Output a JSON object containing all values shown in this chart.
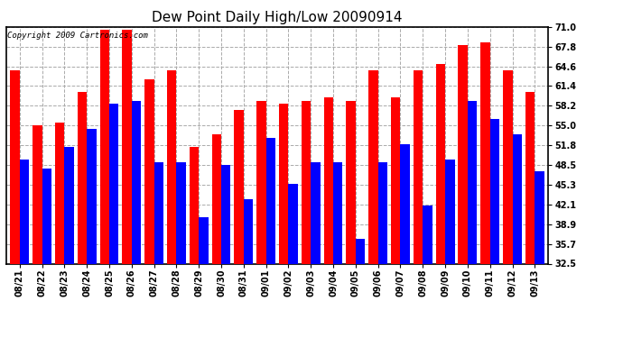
{
  "title": "Dew Point Daily High/Low 20090914",
  "copyright_text": "Copyright 2009 Cartronics.com",
  "categories": [
    "08/21",
    "08/22",
    "08/23",
    "08/24",
    "08/25",
    "08/26",
    "08/27",
    "08/28",
    "08/29",
    "08/30",
    "08/31",
    "09/01",
    "09/02",
    "09/03",
    "09/04",
    "09/05",
    "09/06",
    "09/07",
    "09/08",
    "09/09",
    "09/10",
    "09/11",
    "09/12",
    "09/13"
  ],
  "highs": [
    64.0,
    55.0,
    55.5,
    60.5,
    70.5,
    70.5,
    62.5,
    64.0,
    51.5,
    53.5,
    57.5,
    59.0,
    58.5,
    59.0,
    59.5,
    59.0,
    64.0,
    59.5,
    64.0,
    65.0,
    68.0,
    68.5,
    64.0,
    60.5
  ],
  "lows": [
    49.5,
    48.0,
    51.5,
    54.5,
    58.5,
    59.0,
    49.0,
    49.0,
    40.0,
    48.5,
    43.0,
    53.0,
    45.5,
    49.0,
    49.0,
    36.5,
    49.0,
    52.0,
    42.0,
    49.5,
    59.0,
    56.0,
    53.5,
    47.5
  ],
  "high_color": "#ff0000",
  "low_color": "#0000ff",
  "background_color": "#ffffff",
  "plot_bg_color": "#ffffff",
  "grid_color": "#aaaaaa",
  "yticks": [
    32.5,
    35.7,
    38.9,
    42.1,
    45.3,
    48.5,
    51.8,
    55.0,
    58.2,
    61.4,
    64.6,
    67.8,
    71.0
  ],
  "ylim_min": 32.5,
  "ylim_max": 71.0,
  "bar_width": 0.42,
  "title_fontsize": 11,
  "tick_fontsize": 7,
  "copyright_fontsize": 6.5
}
